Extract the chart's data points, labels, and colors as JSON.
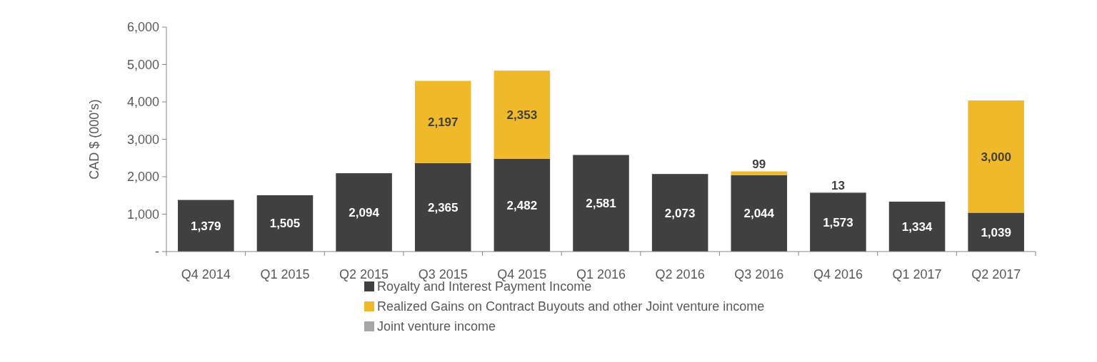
{
  "chart_data": {
    "type": "bar",
    "stacked": true,
    "ylabel": "CAD $ (000's)",
    "categories": [
      "Q4 2014",
      "Q1 2015",
      "Q2 2015",
      "Q3 2015",
      "Q4 2015",
      "Q1 2016",
      "Q2 2016",
      "Q3 2016",
      "Q4 2016",
      "Q1 2017",
      "Q2 2017"
    ],
    "series": [
      {
        "name": "Royalty and Interest Payment Income",
        "color": "#404040",
        "values": [
          1379,
          1505,
          2094,
          2365,
          2482,
          2581,
          2073,
          2044,
          1573,
          1334,
          1039
        ],
        "value_labels": [
          "1,379",
          "1,505",
          "2,094",
          "2,365",
          "2,482",
          "2,581",
          "2,073",
          "2,044",
          "1,573",
          "1,334",
          "1,039"
        ]
      },
      {
        "name": "Realized Gains on Contract Buyouts and other Joint venture income",
        "color": "#f0b929",
        "values": [
          null,
          null,
          null,
          2197,
          2353,
          null,
          null,
          99,
          null,
          null,
          3000
        ],
        "value_labels": [
          null,
          null,
          null,
          "2,197",
          "2,353",
          null,
          null,
          "99",
          null,
          null,
          "3,000"
        ]
      },
      {
        "name": "Joint venture income",
        "color": "#a6a6a6",
        "values": [
          null,
          null,
          null,
          null,
          null,
          null,
          null,
          null,
          13,
          null,
          null
        ],
        "value_labels": [
          null,
          null,
          null,
          null,
          null,
          null,
          null,
          null,
          "13",
          null,
          null
        ]
      }
    ],
    "ylim": [
      0,
      6000
    ],
    "yticks": [
      {
        "value": 0,
        "label": "-"
      },
      {
        "value": 1000,
        "label": "1,000"
      },
      {
        "value": 2000,
        "label": "2,000"
      },
      {
        "value": 3000,
        "label": "3,000"
      },
      {
        "value": 4000,
        "label": "4,000"
      },
      {
        "value": 5000,
        "label": "5,000"
      },
      {
        "value": 6000,
        "label": "6,000"
      }
    ],
    "grid": false,
    "legend": "bottom"
  }
}
